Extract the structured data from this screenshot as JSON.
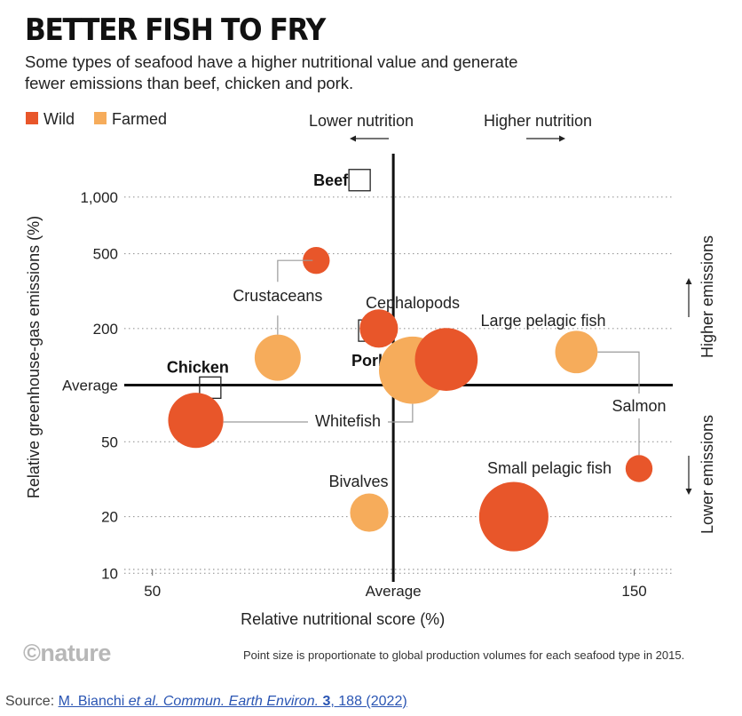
{
  "header": {
    "title": "BETTER FISH TO FRY",
    "subtitle": "Some types of seafood have a higher nutritional value and generate fewer emissions than beef, chicken and pork."
  },
  "colors": {
    "wild": "#e8562a",
    "farmed": "#f6ac5b",
    "axis": "#111111",
    "grid": "#9a9a9a"
  },
  "footer": {
    "logo": "©nature",
    "note": "Point size is proportionate to global production volumes for each seafood type in 2015.",
    "source_prefix": "Source: ",
    "source_link": {
      "authors": "M. Bianchi ",
      "etal": "et al.",
      "journal": " Commun. Earth Environ.",
      "volume": " 3",
      "rest": ", 188 (2022)"
    }
  },
  "chart_data": {
    "type": "scatter",
    "xlabel": "Relative nutritional score (%)",
    "ylabel": "Relative greenhouse-gas emissions (%)",
    "x_scale": "linear",
    "y_scale": "log",
    "xlim": [
      46,
      158
    ],
    "ylim": [
      9,
      1700
    ],
    "x_ticks": [
      {
        "value": 50,
        "label": "50"
      },
      {
        "value": 100,
        "label": "Average"
      },
      {
        "value": 150,
        "label": "150"
      }
    ],
    "y_ticks": [
      {
        "value": 1000,
        "label": "1,000"
      },
      {
        "value": 500,
        "label": "500"
      },
      {
        "value": 200,
        "label": "200"
      },
      {
        "value": 50,
        "label": "50"
      },
      {
        "value": 20,
        "label": "20"
      },
      {
        "value": 10,
        "label": "10"
      }
    ],
    "average_line": {
      "x": 100,
      "y": 100,
      "x_label": "Average",
      "y_label": "Average"
    },
    "legend": {
      "position": "top-left",
      "items": [
        {
          "name": "Wild",
          "color": "#e8562a"
        },
        {
          "name": "Farmed",
          "color": "#f6ac5b"
        }
      ]
    },
    "direction_labels": {
      "lower_nutrition": "Lower nutrition",
      "higher_nutrition": "Higher nutrition",
      "higher_emissions": "Higher emissions",
      "lower_emissions": "Lower emissions"
    },
    "seafood": [
      {
        "label": "Crustaceans",
        "type": "wild",
        "x": 84,
        "y": 460,
        "size": 1
      },
      {
        "label": "Crustaceans",
        "type": "farmed",
        "x": 76,
        "y": 140,
        "size": 5
      },
      {
        "label": "Cephalopods",
        "type": "wild",
        "x": 97,
        "y": 200,
        "size": 3
      },
      {
        "label": "Whitefish",
        "type": "wild",
        "x": 59,
        "y": 65,
        "size": 8
      },
      {
        "label": "Whitefish",
        "type": "farmed",
        "x": 104,
        "y": 120,
        "size": 13
      },
      {
        "label": "Large pelagic fish",
        "type": "wild",
        "x": 111,
        "y": 137,
        "size": 11
      },
      {
        "label": "Salmon",
        "type": "farmed",
        "x": 138,
        "y": 150,
        "size": 4
      },
      {
        "label": "Salmon",
        "type": "wild",
        "x": 151,
        "y": 36,
        "size": 1
      },
      {
        "label": "Small pelagic fish",
        "type": "wild",
        "x": 125,
        "y": 20,
        "size": 14
      },
      {
        "label": "Bivalves",
        "type": "farmed",
        "x": 95,
        "y": 21,
        "size": 3
      }
    ],
    "reference_foods": [
      {
        "label": "Beef",
        "x": 93,
        "y": 1230
      },
      {
        "label": "Pork",
        "x": 95,
        "y": 195
      },
      {
        "label": "Chicken",
        "x": 62,
        "y": 97
      }
    ]
  }
}
